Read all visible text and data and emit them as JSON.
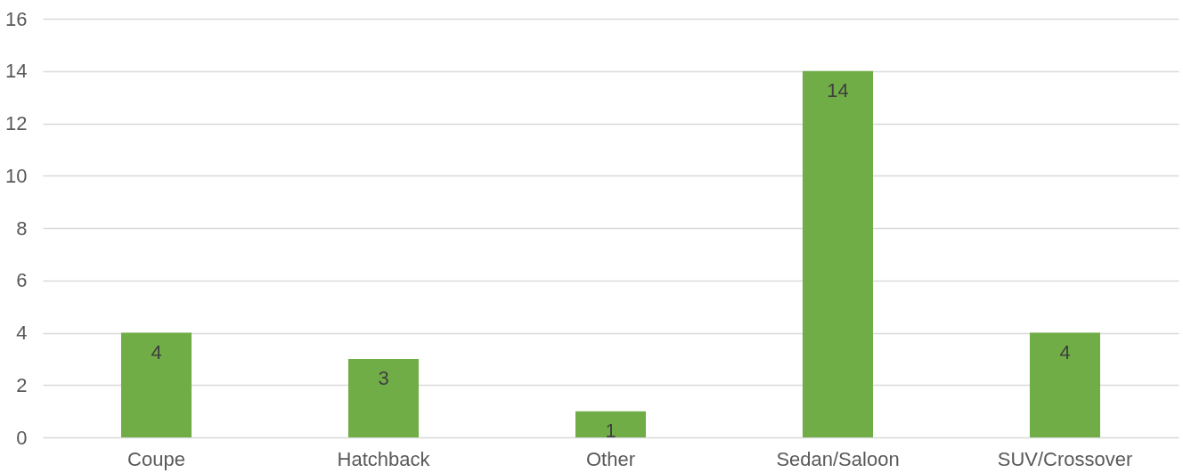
{
  "chart_data": {
    "type": "bar",
    "categories": [
      "Coupe",
      "Hatchback",
      "Other",
      "Sedan/Saloon",
      "SUV/Crossover"
    ],
    "values": [
      4,
      3,
      1,
      14,
      4
    ],
    "color": "#70ad47",
    "ylim": [
      0,
      16
    ],
    "yticks": [
      0,
      2,
      4,
      6,
      8,
      10,
      12,
      14,
      16
    ],
    "grid": "y",
    "data_labels": true
  }
}
